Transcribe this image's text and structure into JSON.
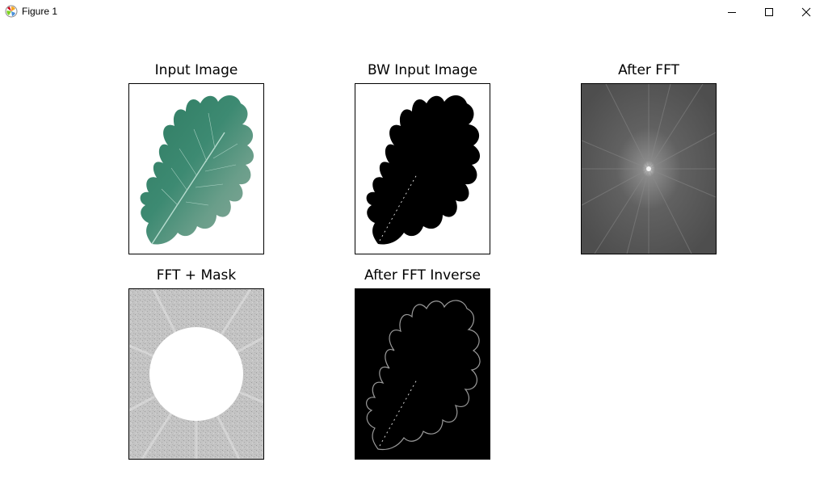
{
  "window": {
    "title": "Figure 1",
    "icon": "matplotlib-icon",
    "controls": [
      "minimize-icon",
      "maximize-icon",
      "close-icon"
    ]
  },
  "figure": {
    "subplots": [
      {
        "title": "Input Image"
      },
      {
        "title": "BW Input Image"
      },
      {
        "title": "After FFT"
      },
      {
        "title": "FFT + Mask"
      },
      {
        "title": "After FFT Inverse"
      }
    ]
  }
}
